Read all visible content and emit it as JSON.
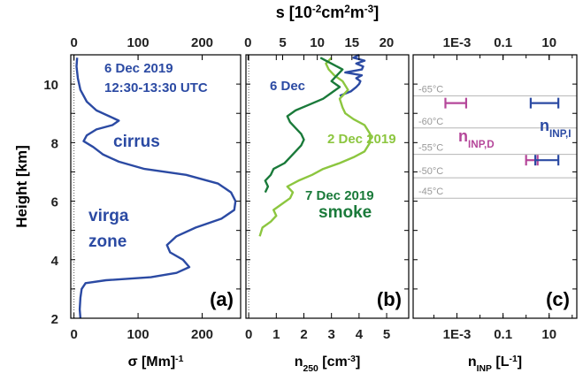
{
  "chart_data": {
    "type": "line",
    "y_axis": {
      "label": "Height [km]",
      "range": [
        2,
        11
      ],
      "ticks": [
        2,
        4,
        6,
        8,
        10
      ]
    },
    "panels": [
      {
        "id": "a",
        "panel_label": "(a)",
        "bottom_axis": {
          "label_main": "σ [Mm",
          "label_sup": "-1",
          "label_tail": "]",
          "range": [
            -5,
            260
          ],
          "ticks": [
            0,
            100,
            200
          ]
        },
        "top_axis": {
          "label_main": "",
          "range": [
            -5,
            260
          ],
          "ticks": [
            0,
            100,
            200
          ]
        },
        "annotations": [
          {
            "text": "6 Dec 2019",
            "color": "#2b4aa3"
          },
          {
            "text": "12:30-13:30 UTC",
            "color": "#2b4aa3"
          },
          {
            "text": "cirrus",
            "color": "#2b4aa3"
          },
          {
            "text": "virga",
            "color": "#2b4aa3"
          },
          {
            "text": "zone",
            "color": "#2b4aa3"
          }
        ],
        "series": [
          {
            "color": "#2b4aa3",
            "points": [
              [
                10,
                2.0
              ],
              [
                9,
                2.3
              ],
              [
                10,
                2.7
              ],
              [
                12,
                3.0
              ],
              [
                18,
                3.2
              ],
              [
                50,
                3.3
              ],
              [
                120,
                3.4
              ],
              [
                160,
                3.55
              ],
              [
                180,
                3.75
              ],
              [
                170,
                4.0
              ],
              [
                150,
                4.25
              ],
              [
                145,
                4.5
              ],
              [
                160,
                4.8
              ],
              [
                190,
                5.1
              ],
              [
                230,
                5.4
              ],
              [
                250,
                5.7
              ],
              [
                252,
                6.0
              ],
              [
                245,
                6.3
              ],
              [
                225,
                6.6
              ],
              [
                175,
                6.9
              ],
              [
                110,
                7.1
              ],
              [
                70,
                7.35
              ],
              [
                45,
                7.6
              ],
              [
                30,
                7.85
              ],
              [
                15,
                8.05
              ],
              [
                20,
                8.25
              ],
              [
                35,
                8.45
              ],
              [
                60,
                8.6
              ],
              [
                70,
                8.75
              ],
              [
                55,
                8.9
              ],
              [
                35,
                9.1
              ],
              [
                20,
                9.4
              ],
              [
                10,
                9.8
              ],
              [
                6,
                10.2
              ],
              [
                4,
                10.6
              ],
              [
                5,
                10.9
              ]
            ]
          }
        ]
      },
      {
        "id": "b",
        "panel_label": "(b)",
        "bottom_axis": {
          "label_main": "n",
          "label_sub": "250",
          "label_tail": " [cm",
          "label_sup": "-3",
          "label_end": "]",
          "range": [
            -0.1,
            5.8
          ],
          "ticks": [
            0,
            1,
            2,
            3,
            4,
            5
          ]
        },
        "top_axis": {
          "label_main": "s [10",
          "label_sup1": "-2",
          "label_mid": "cm",
          "label_sup2": "2",
          "label_mid2": "m",
          "label_sup3": "-3",
          "label_end": "]",
          "range": [
            -0.3,
            23.2
          ],
          "ticks": [
            0,
            5,
            10,
            15,
            20
          ]
        },
        "annotations": [
          {
            "text": "6 Dec",
            "color": "#2b4aa3"
          },
          {
            "text": "2 Dec 2019",
            "color": "#8cc63f"
          },
          {
            "text": "7 Dec 2019",
            "color": "#1a7a3a"
          },
          {
            "text": "smoke",
            "color": "#1a7a3a"
          }
        ],
        "series": [
          {
            "name": "6 Dec",
            "color": "#2b4aa3",
            "points": [
              [
                3.3,
                9.6
              ],
              [
                3.7,
                9.75
              ],
              [
                3.9,
                9.9
              ],
              [
                4.0,
                10.0
              ],
              [
                4.05,
                10.1
              ],
              [
                3.9,
                10.2
              ],
              [
                4.1,
                10.3
              ],
              [
                3.5,
                10.4
              ],
              [
                4.1,
                10.5
              ],
              [
                4.15,
                10.6
              ],
              [
                3.9,
                10.7
              ],
              [
                4.2,
                10.8
              ],
              [
                3.8,
                10.9
              ],
              [
                4.0,
                11.0
              ]
            ]
          },
          {
            "name": "2 Dec 2019",
            "color": "#8cc63f",
            "points": [
              [
                0.4,
                4.8
              ],
              [
                0.5,
                5.1
              ],
              [
                0.8,
                5.3
              ],
              [
                1.0,
                5.5
              ],
              [
                0.9,
                5.7
              ],
              [
                1.2,
                5.9
              ],
              [
                1.5,
                6.1
              ],
              [
                1.6,
                6.3
              ],
              [
                1.4,
                6.5
              ],
              [
                1.8,
                6.7
              ],
              [
                2.3,
                6.9
              ],
              [
                2.7,
                7.1
              ],
              [
                3.3,
                7.3
              ],
              [
                3.8,
                7.5
              ],
              [
                4.2,
                7.7
              ],
              [
                4.4,
                8.0
              ],
              [
                4.4,
                8.3
              ],
              [
                4.2,
                8.6
              ],
              [
                3.8,
                8.8
              ],
              [
                3.5,
                9.0
              ],
              [
                3.4,
                9.2
              ],
              [
                3.3,
                9.5
              ],
              [
                3.6,
                9.8
              ],
              [
                3.4,
                10.1
              ],
              [
                3.1,
                10.3
              ],
              [
                2.9,
                10.5
              ],
              [
                2.8,
                10.7
              ],
              [
                3.0,
                10.9
              ]
            ]
          },
          {
            "name": "7 Dec 2019",
            "color": "#1a7a3a",
            "points": [
              [
                0.6,
                6.3
              ],
              [
                0.7,
                6.5
              ],
              [
                0.6,
                6.7
              ],
              [
                0.8,
                6.9
              ],
              [
                0.9,
                7.1
              ],
              [
                1.3,
                7.3
              ],
              [
                1.5,
                7.5
              ],
              [
                1.7,
                7.7
              ],
              [
                1.9,
                7.9
              ],
              [
                2.0,
                8.1
              ],
              [
                1.9,
                8.3
              ],
              [
                1.7,
                8.5
              ],
              [
                1.5,
                8.7
              ],
              [
                1.4,
                8.9
              ],
              [
                1.7,
                9.1
              ],
              [
                2.2,
                9.3
              ],
              [
                2.7,
                9.5
              ],
              [
                3.0,
                9.7
              ],
              [
                3.3,
                9.9
              ],
              [
                3.0,
                10.1
              ],
              [
                3.2,
                10.3
              ],
              [
                3.4,
                10.5
              ],
              [
                3.0,
                10.7
              ],
              [
                2.6,
                10.9
              ]
            ]
          }
        ]
      },
      {
        "id": "c",
        "panel_label": "(c)",
        "bottom_axis": {
          "label_main": "n",
          "label_sub": "INP",
          "label_tail": " [L",
          "label_sup": "-1",
          "label_end": "]",
          "range_log10": [
            -4.9,
            2.2
          ],
          "ticks": [
            "1E-3",
            "0.1",
            "10"
          ],
          "tick_log10": [
            -3,
            -1,
            1
          ]
        },
        "top_axis": {
          "label_main": "",
          "ticks": [
            "1E-3",
            "0.1",
            "10"
          ]
        },
        "temperature_lines": [
          {
            "label": "-65°C",
            "height_km": 9.6
          },
          {
            "label": "-60°C",
            "height_km": 8.5
          },
          {
            "label": "-55°C",
            "height_km": 7.6
          },
          {
            "label": "-50°C",
            "height_km": 6.8
          },
          {
            "label": "-45°C",
            "height_km": 6.1
          }
        ],
        "annotations": [
          {
            "key": "nd",
            "text": "n",
            "sub": "INP,D",
            "color": "#b5479a"
          },
          {
            "key": "ni",
            "text": "n",
            "sub": "INP,I",
            "color": "#2b4aa3"
          }
        ],
        "ranges": [
          {
            "name": "n_INP,D",
            "color": "#b5479a",
            "height_km": 9.35,
            "log10_min": -3.5,
            "log10_max": -2.6
          },
          {
            "name": "n_INP,D",
            "color": "#b5479a",
            "height_km": 7.4,
            "log10_min": 0.0,
            "log10_max": 0.5
          },
          {
            "name": "n_INP,I",
            "color": "#2b4aa3",
            "height_km": 9.35,
            "log10_min": 0.2,
            "log10_max": 1.4
          },
          {
            "name": "n_INP,I",
            "color": "#2b4aa3",
            "height_km": 7.4,
            "log10_min": 0.4,
            "log10_max": 1.4
          }
        ]
      }
    ]
  }
}
